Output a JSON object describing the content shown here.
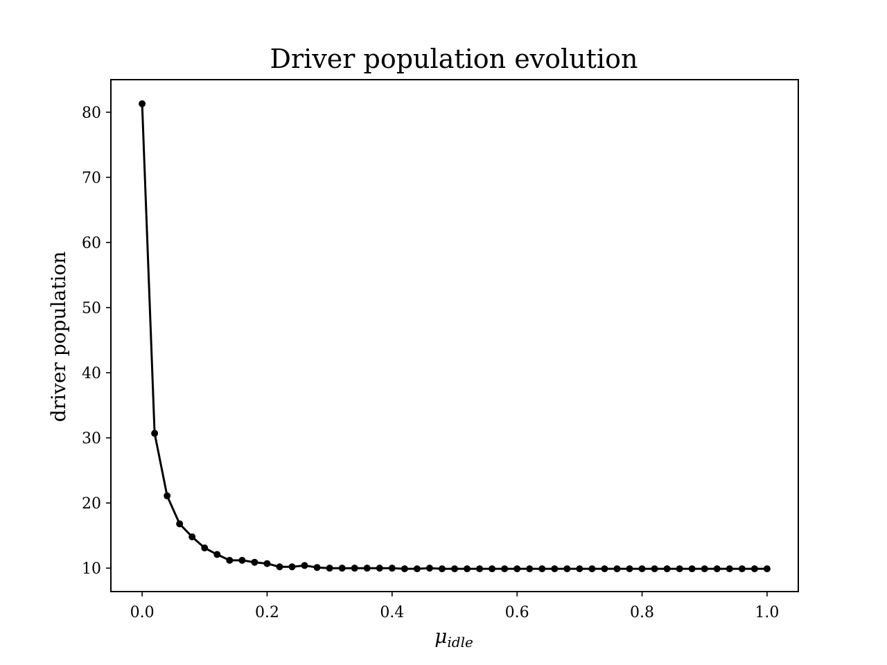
{
  "chart_data": {
    "type": "line",
    "title": "Driver population evolution",
    "xlabel": "μidle",
    "xlabel_symbol": "μ",
    "xlabel_subscript": "idle",
    "ylabel": "driver population",
    "xlim": [
      -0.05,
      1.05
    ],
    "ylim": [
      6.4,
      85.0
    ],
    "xticks": [
      0.0,
      0.2,
      0.4,
      0.6,
      0.8,
      1.0
    ],
    "xtick_labels": [
      "0.0",
      "0.2",
      "0.4",
      "0.6",
      "0.8",
      "1.0"
    ],
    "yticks": [
      10,
      20,
      30,
      40,
      50,
      60,
      70,
      80
    ],
    "ytick_labels": [
      "10",
      "20",
      "30",
      "40",
      "50",
      "60",
      "70",
      "80"
    ],
    "grid": false,
    "line_color": "#000000",
    "marker": "circle",
    "series": [
      {
        "x": [
          0.0,
          0.02,
          0.04,
          0.06,
          0.08,
          0.1,
          0.12,
          0.14,
          0.16,
          0.18,
          0.2,
          0.22,
          0.24,
          0.26,
          0.28,
          0.3,
          0.32,
          0.34,
          0.36,
          0.38,
          0.4,
          0.42,
          0.44,
          0.46,
          0.48,
          0.5,
          0.52,
          0.54,
          0.56,
          0.58,
          0.6,
          0.62,
          0.64,
          0.66,
          0.68,
          0.7,
          0.72,
          0.74,
          0.76,
          0.78,
          0.8,
          0.82,
          0.84,
          0.86,
          0.88,
          0.9,
          0.92,
          0.94,
          0.96,
          0.98,
          1.0
        ],
        "values": [
          81.3,
          30.7,
          21.1,
          16.8,
          14.8,
          13.1,
          12.1,
          11.2,
          11.2,
          10.9,
          10.7,
          10.2,
          10.2,
          10.4,
          10.1,
          10.0,
          10.0,
          10.0,
          10.0,
          10.0,
          10.0,
          9.9,
          9.9,
          10.0,
          9.9,
          9.9,
          9.9,
          9.9,
          9.9,
          9.9,
          9.9,
          9.9,
          9.9,
          9.9,
          9.9,
          9.9,
          9.9,
          9.9,
          9.9,
          9.9,
          9.9,
          9.9,
          9.9,
          9.9,
          9.9,
          9.9,
          9.9,
          9.9,
          9.9,
          9.9,
          9.9
        ]
      }
    ]
  }
}
